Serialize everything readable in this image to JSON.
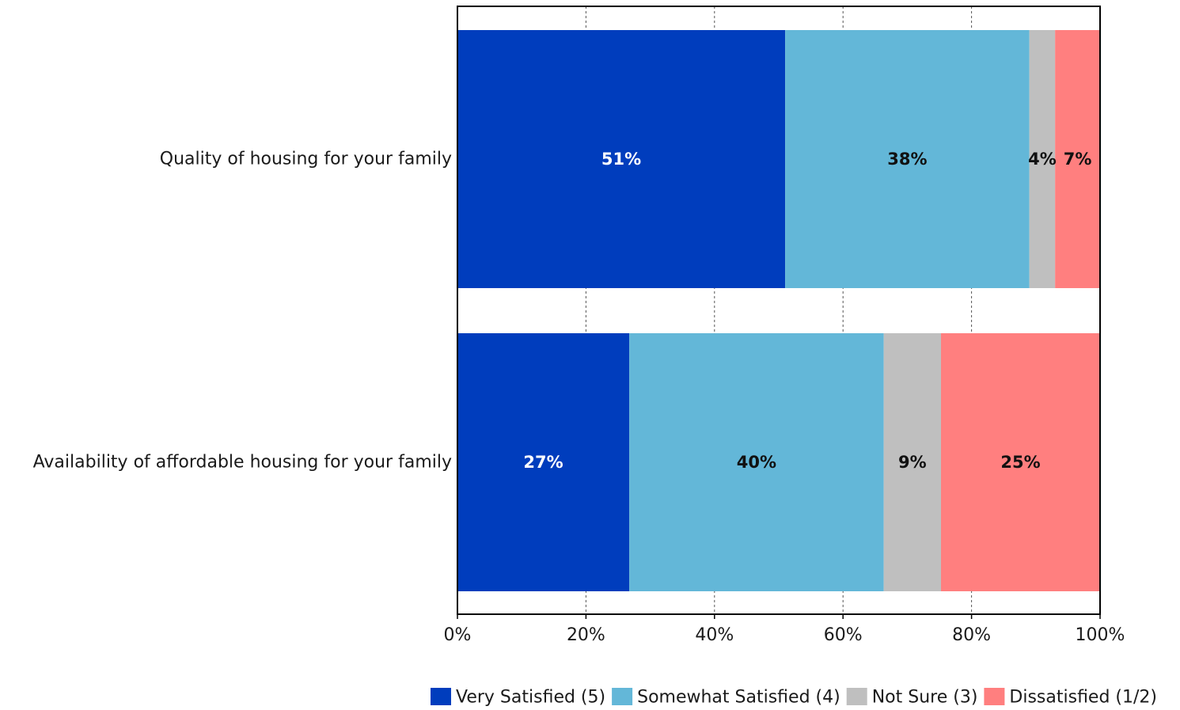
{
  "chart_data": {
    "type": "bar",
    "orientation": "horizontal",
    "stacked": true,
    "categories": [
      "Quality of housing for your family",
      "Availability of affordable housing for your family"
    ],
    "series": [
      {
        "name": "Very Satisfied (5)",
        "color": "#003DBD",
        "label_color": "#ffffff",
        "values": [
          51,
          27
        ],
        "labels": [
          "51%",
          "27%"
        ]
      },
      {
        "name": "Somewhat Satisfied (4)",
        "color": "#63B7D8",
        "label_color": "#111111",
        "values": [
          38,
          40
        ],
        "labels": [
          "38%",
          "40%"
        ]
      },
      {
        "name": "Not Sure (3)",
        "color": "#BFBFBF",
        "label_color": "#111111",
        "values": [
          4,
          9
        ],
        "labels": [
          "4%",
          "9%"
        ]
      },
      {
        "name": "Dissatisfied (1/2)",
        "color": "#FF7F7F",
        "label_color": "#111111",
        "values": [
          7,
          25
        ],
        "labels": [
          "7%",
          "25%"
        ]
      }
    ],
    "xlim": [
      0,
      100
    ],
    "xticks": [
      0,
      20,
      40,
      60,
      80,
      100
    ],
    "xtick_labels": [
      "0%",
      "20%",
      "40%",
      "60%",
      "80%",
      "100%"
    ],
    "grid": "vertical dashed",
    "legend_position": "bottom",
    "title": "",
    "xlabel": "",
    "ylabel": ""
  }
}
